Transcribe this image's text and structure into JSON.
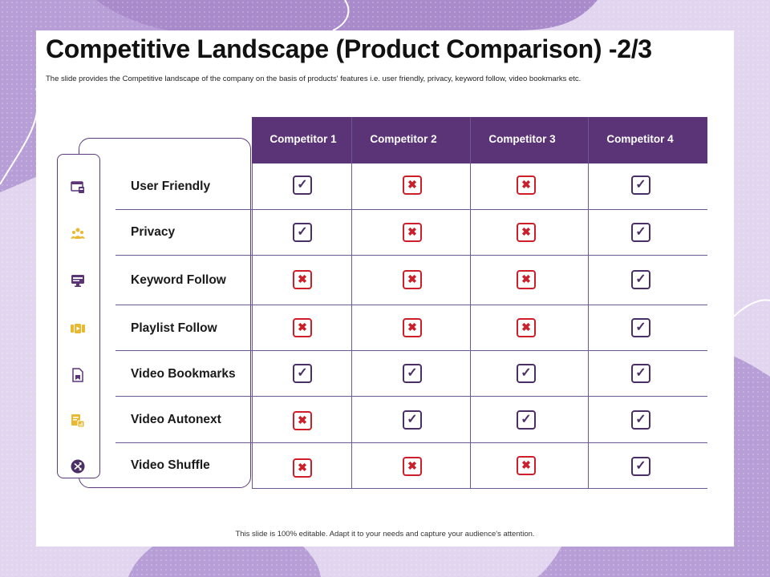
{
  "title": "Competitive Landscape (Product Comparison) -2/3",
  "subtitle": "The slide provides the Competitive  landscape of the company on the basis of products' features i.e. user friendly, privacy, keyword follow, video bookmarks  etc.",
  "footer": "This slide is 100% editable.  Adapt it to your needs and capture your audience's attention.",
  "colors": {
    "header": "#5b3478",
    "check": "#4a2f66",
    "cross": "#cc1f2a",
    "accent_gold": "#e8b830"
  },
  "symbols": {
    "yes": "✓",
    "no": "✖"
  },
  "competitors": [
    "Competitor 1",
    "Competitor 2",
    "Competitor 3",
    "Competitor 4"
  ],
  "rows": [
    {
      "feature": "User Friendly",
      "icon": "browser-window-icon",
      "marks": [
        "yes",
        "no",
        "no",
        "yes"
      ]
    },
    {
      "feature": "Privacy",
      "icon": "user-group-icon",
      "marks": [
        "yes",
        "no",
        "no",
        "yes"
      ]
    },
    {
      "feature": "Keyword Follow",
      "icon": "monitor-keyboard-icon",
      "marks": [
        "no",
        "no",
        "no",
        "yes"
      ]
    },
    {
      "feature": "Playlist Follow",
      "icon": "video-play-icon",
      "marks": [
        "no",
        "no",
        "no",
        "yes"
      ]
    },
    {
      "feature": "Video Bookmarks",
      "icon": "bookmark-document-icon",
      "marks": [
        "yes",
        "yes",
        "yes",
        "yes"
      ]
    },
    {
      "feature": "Video Autonext",
      "icon": "document-chart-icon",
      "marks": [
        "no",
        "yes",
        "yes",
        "yes"
      ]
    },
    {
      "feature": "Video Shuffle",
      "icon": "shuffle-icon",
      "marks": [
        "no",
        "no",
        "no",
        "yes"
      ]
    }
  ]
}
